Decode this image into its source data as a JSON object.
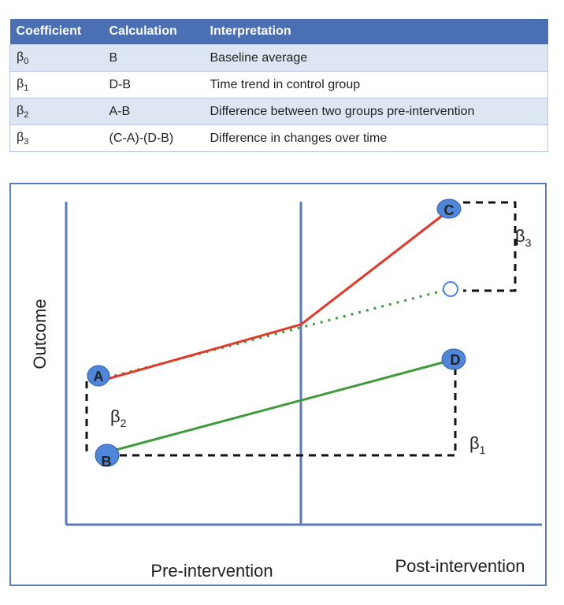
{
  "table": {
    "headers": [
      "Coefficient",
      "Calculation",
      "Interpretation"
    ],
    "rows": [
      {
        "coef": "β",
        "sub": "0",
        "calc": "B",
        "interp": "Baseline average"
      },
      {
        "coef": "β",
        "sub": "1",
        "calc": "D-B",
        "interp": "Time trend in control group"
      },
      {
        "coef": "β",
        "sub": "2",
        "calc": "A-B",
        "interp": "Difference between two groups pre-intervention"
      },
      {
        "coef": "β",
        "sub": "3",
        "calc": "(C-A)-(D-B)",
        "interp": "Difference in changes over time"
      }
    ]
  },
  "diagram": {
    "y_label": "Outcome",
    "x_label_pre": "Pre-intervention",
    "x_label_post": "Post-intervention",
    "points": {
      "A": "A",
      "B": "B",
      "C": "C",
      "D": "D"
    },
    "beta_labels": {
      "b1": {
        "sym": "β",
        "sub": "1"
      },
      "b2": {
        "sym": "β",
        "sub": "2"
      },
      "b3": {
        "sym": "β",
        "sub": "3"
      }
    },
    "colors": {
      "treatment": "#e0392b",
      "control": "#3f9a3a",
      "counterfactual": "#3f9a3a",
      "axis": "#5b7ab8",
      "point_fill": "#4f86d9",
      "dashes": "#111111"
    }
  }
}
